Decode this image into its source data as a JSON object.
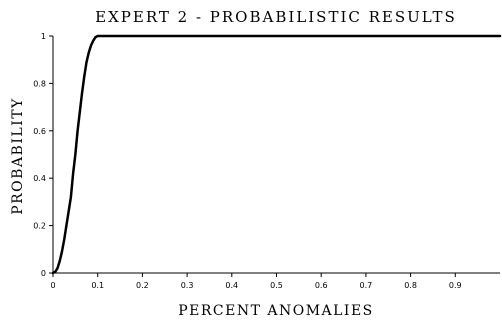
{
  "chart_data": {
    "type": "line",
    "title": "EXPERT 2 - PROBABILISTIC RESULTS",
    "xlabel": "PERCENT ANOMALIES",
    "ylabel": "PROBABILITY",
    "xlim": [
      0,
      1
    ],
    "ylim": [
      0,
      1
    ],
    "x_ticks": [
      "0",
      "0.1",
      "0.2",
      "0.3",
      "0.4",
      "0.5",
      "0.6",
      "0.7",
      "0.8",
      "0.9"
    ],
    "y_ticks": [
      "0",
      "0.2",
      "0.4",
      "0.6",
      "0.8",
      "1"
    ],
    "grid": false,
    "legend": false,
    "series": [
      {
        "color": "#000000",
        "x": [
          0,
          0.005,
          0.01,
          0.015,
          0.02,
          0.025,
          0.03,
          0.035,
          0.04,
          0.045,
          0.05,
          0.055,
          0.06,
          0.065,
          0.07,
          0.075,
          0.08,
          0.085,
          0.09,
          0.095,
          0.1,
          0.11,
          0.15,
          0.2,
          0.3,
          0.5,
          0.7,
          0.9,
          1.0
        ],
        "y": [
          0,
          0.005,
          0.02,
          0.05,
          0.09,
          0.14,
          0.2,
          0.26,
          0.32,
          0.42,
          0.5,
          0.6,
          0.68,
          0.76,
          0.83,
          0.89,
          0.93,
          0.96,
          0.98,
          0.995,
          1.0,
          1.0,
          1.0,
          1.0,
          1.0,
          1.0,
          1.0,
          1.0,
          1.0
        ]
      }
    ]
  }
}
